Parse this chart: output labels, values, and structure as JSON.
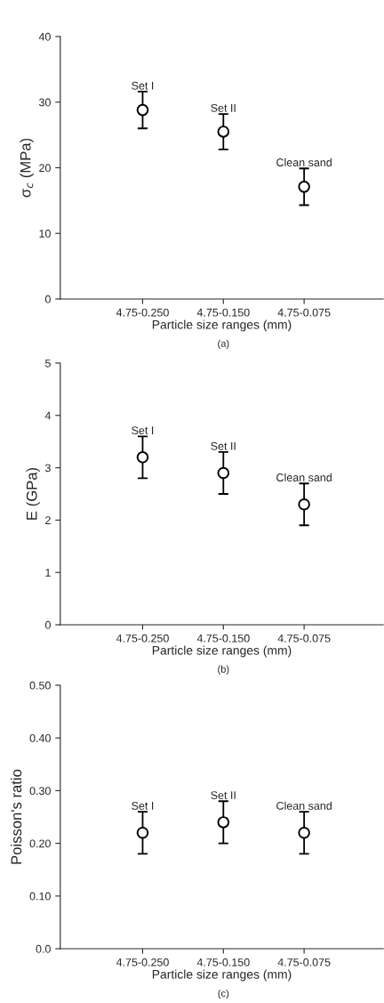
{
  "chart_data": [
    {
      "type": "scatter",
      "xlabel": "Particle size ranges (mm)",
      "ylabel": "σ$_{c}$ (MPa)",
      "categories": [
        "4.75-0.250",
        "4.75-0.150",
        "4.75-0.075"
      ],
      "values": [
        28.8,
        25.5,
        17.1
      ],
      "errors": [
        2.8,
        2.7,
        2.8
      ],
      "color": "#000000",
      "marker": "circle",
      "ylim": [
        0,
        40
      ],
      "yticks": [
        0,
        10,
        20,
        30,
        40
      ],
      "annotations": [
        {
          "text": "Set I",
          "x": "4.75-0.250",
          "y": 31.6
        },
        {
          "text": "Set II",
          "x": "4.75-0.150",
          "y": 28.2
        },
        {
          "text": "Clean sand",
          "x": "4.75-0.075",
          "y": 19.9
        },
        "(a)"
      ]
    },
    {
      "type": "scatter",
      "xlabel": "Particle size ranges (mm)",
      "ylabel": "E (GPa)",
      "categories": [
        "4.75-0.250",
        "4.75-0.150",
        "4.75-0.075"
      ],
      "values": [
        3.2,
        2.9,
        2.3
      ],
      "errors": [
        0.4,
        0.4,
        0.4
      ],
      "color": "#000000",
      "marker": "circle",
      "ylim": [
        0,
        5
      ],
      "yticks": [
        0,
        1,
        2,
        3,
        4,
        5
      ],
      "annotations": [
        {
          "text": "Set I",
          "x": "4.75-0.250",
          "y": 3.6
        },
        {
          "text": "Set II",
          "x": "4.75-0.150",
          "y": 3.3
        },
        {
          "text": "Clean sand",
          "x": "4.75-0.075",
          "y": 2.7
        },
        "(b)"
      ]
    },
    {
      "type": "scatter",
      "xlabel": "Particle size ranges (mm)",
      "ylabel": "Poisson's ratio",
      "categories": [
        "4.75-0.250",
        "4.75-0.150",
        "4.75-0.075"
      ],
      "values": [
        0.22,
        0.24,
        0.22
      ],
      "errors": [
        0.04,
        0.04,
        0.04
      ],
      "color": "#000000",
      "marker": "circle",
      "ylim": [
        0,
        0.5
      ],
      "yticks": [
        {
          "value": 0,
          "label": "0.0"
        },
        {
          "value": 0.1,
          "label": "0.10"
        },
        {
          "value": 0.2,
          "label": "0.20"
        },
        {
          "value": 0.3,
          "label": "0.30"
        },
        {
          "value": 0.4,
          "label": "0.40"
        },
        {
          "value": 0.5,
          "label": "0.50"
        }
      ],
      "annotations": [
        {
          "text": "Set I",
          "x": "4.75-0.250",
          "y": 0.26
        },
        {
          "text": "Set II",
          "x": "4.75-0.150",
          "y": 0.28
        },
        {
          "text": "Clean sand",
          "x": "4.75-0.075",
          "y": 0.26
        },
        "(c)"
      ]
    }
  ]
}
